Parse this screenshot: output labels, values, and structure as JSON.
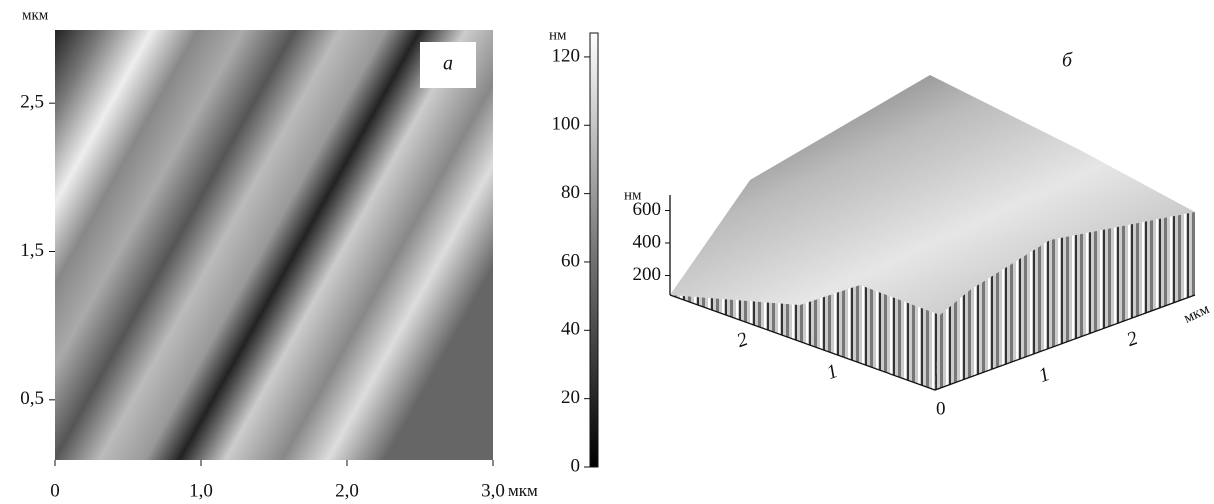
{
  "panel_a": {
    "label": "а",
    "y_unit": "мкм",
    "x_unit": "мкм",
    "xlim": [
      0,
      3
    ],
    "ylim": [
      0,
      3
    ],
    "xticks": [
      0,
      {
        "value": 1,
        "label": "1,0"
      },
      {
        "value": 2,
        "label": "2,0"
      },
      {
        "value": 3,
        "label": "3,0"
      }
    ],
    "yticks": [
      {
        "value": 0.5,
        "label": "0,5"
      },
      {
        "value": 1.5,
        "label": "1,5"
      },
      {
        "value": 2.5,
        "label": "2,5"
      }
    ]
  },
  "colorbar": {
    "unit": "нм",
    "ylim": [
      0,
      127
    ],
    "yticks": [
      0,
      20,
      40,
      60,
      80,
      100,
      120
    ]
  },
  "panel_b": {
    "label": "б",
    "z_unit": "нм",
    "zticks": [
      200,
      400,
      600
    ],
    "x_ticks": [
      "2",
      "1"
    ],
    "origin": "0",
    "y_ticks": [
      "1",
      "2"
    ],
    "y_unit": "мкм"
  }
}
